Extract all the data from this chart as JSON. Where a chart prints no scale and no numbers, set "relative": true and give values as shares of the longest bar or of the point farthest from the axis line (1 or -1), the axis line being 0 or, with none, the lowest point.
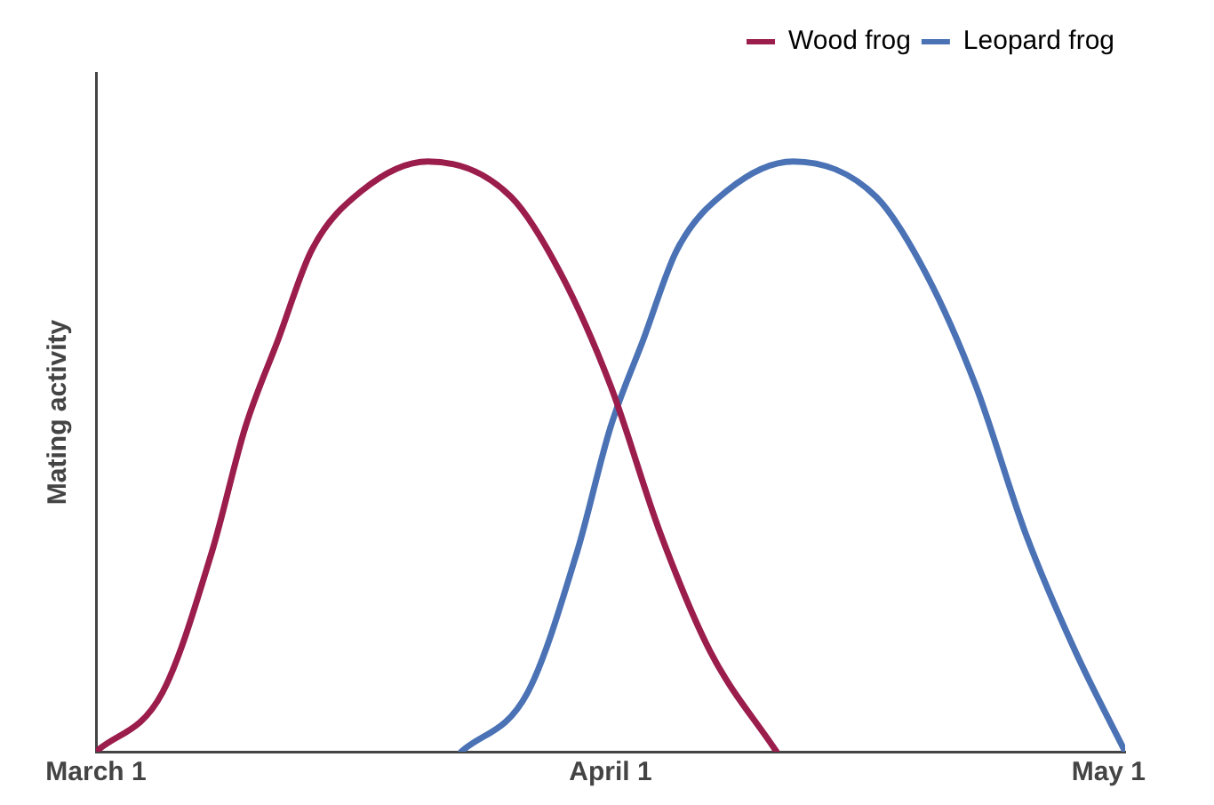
{
  "chart_data": {
    "type": "line",
    "relative": true,
    "ylabel": "Mating activity",
    "legend": "top right",
    "marker": "none",
    "line_style": "solid",
    "grid": false,
    "xlim": [
      "--03-01",
      "--05-02"
    ],
    "xticks": [
      {
        "value": "--03-01",
        "label": "March 1"
      },
      {
        "value": "--04-01",
        "label": "April 1"
      },
      {
        "value": "--05-01",
        "label": "May 1"
      }
    ],
    "series": [
      {
        "name": "Wood frog",
        "color": "#9b1d4c",
        "x": [
          "--03-01",
          "--03-05",
          "--03-08",
          "--03-10",
          "--03-12",
          "--03-14",
          "--03-17",
          "--03-21",
          "--03-26",
          "--03-29",
          "--04-01",
          "--04-04",
          "--04-07",
          "--04-11"
        ],
        "values": [
          0,
          0.1,
          0.34,
          0.55,
          0.7,
          0.85,
          0.95,
          1,
          0.94,
          0.81,
          0.62,
          0.37,
          0.17,
          0
        ]
      },
      {
        "name": "Leopard frog",
        "color": "#4a72b5",
        "x": [
          "--03-23",
          "--03-27",
          "--03-30",
          "--04-01",
          "--04-03",
          "--04-05",
          "--04-08",
          "--04-12",
          "--04-17",
          "--04-20",
          "--04-23",
          "--04-26",
          "--04-29",
          "--05-02"
        ],
        "values": [
          0,
          0.1,
          0.34,
          0.55,
          0.7,
          0.85,
          0.95,
          1,
          0.94,
          0.81,
          0.62,
          0.37,
          0.17,
          0
        ]
      }
    ]
  }
}
